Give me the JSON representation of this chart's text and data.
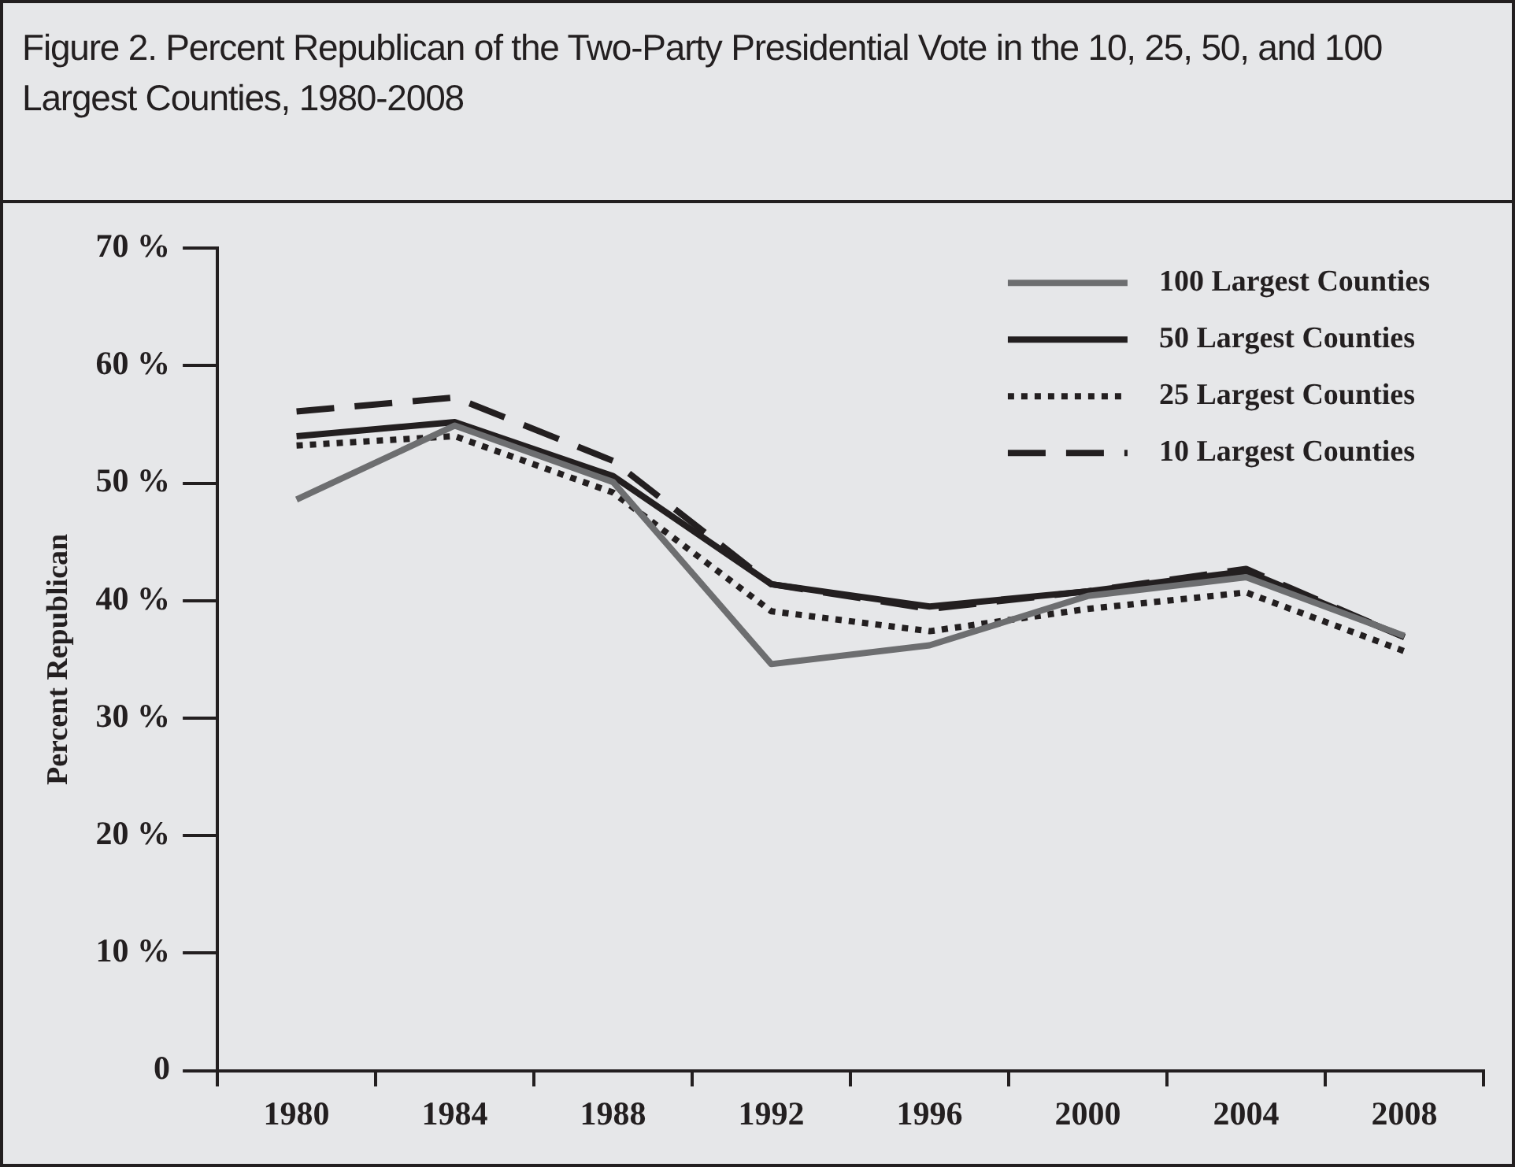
{
  "chart_data": {
    "type": "line",
    "title": "Figure 2. Percent Republican of the Two-Party Presidential Vote in the 10, 25, 50, and 100 Largest Counties, 1980-2008",
    "ylabel": "Percent Republican",
    "categories": [
      "1980",
      "1984",
      "1988",
      "1992",
      "1996",
      "2000",
      "2004",
      "2008"
    ],
    "series": [
      {
        "name": "100 Largest Counties",
        "color": "#6d6e70",
        "line_style": "solid",
        "values": [
          48.6,
          54.9,
          50.1,
          34.6,
          36.2,
          40.4,
          42.0,
          37.0
        ]
      },
      {
        "name": "50 Largest Counties",
        "color": "#231f20",
        "line_style": "solid",
        "values": [
          54.0,
          55.2,
          50.6,
          41.4,
          39.5,
          40.8,
          42.5,
          36.9
        ]
      },
      {
        "name": "25 Largest Counties",
        "color": "#231f20",
        "line_style": "dotted",
        "values": [
          53.2,
          54.0,
          49.2,
          39.1,
          37.4,
          39.3,
          40.7,
          35.7
        ]
      },
      {
        "name": "10 Largest Counties",
        "color": "#231f20",
        "line_style": "dashed",
        "values": [
          56.1,
          57.3,
          51.9,
          41.4,
          39.3,
          40.8,
          42.7,
          36.9
        ]
      }
    ],
    "ylim": [
      0,
      70
    ],
    "yticks": [
      {
        "value": 0,
        "label": "0"
      },
      {
        "value": 10,
        "label": "10 %"
      },
      {
        "value": 20,
        "label": "20 %"
      },
      {
        "value": 30,
        "label": "30 %"
      },
      {
        "value": 40,
        "label": "40 %"
      },
      {
        "value": 50,
        "label": "50 %"
      },
      {
        "value": 60,
        "label": "60 %"
      },
      {
        "value": 70,
        "label": "70 %"
      }
    ],
    "grid": false,
    "legend": "top right",
    "marker": "none"
  }
}
